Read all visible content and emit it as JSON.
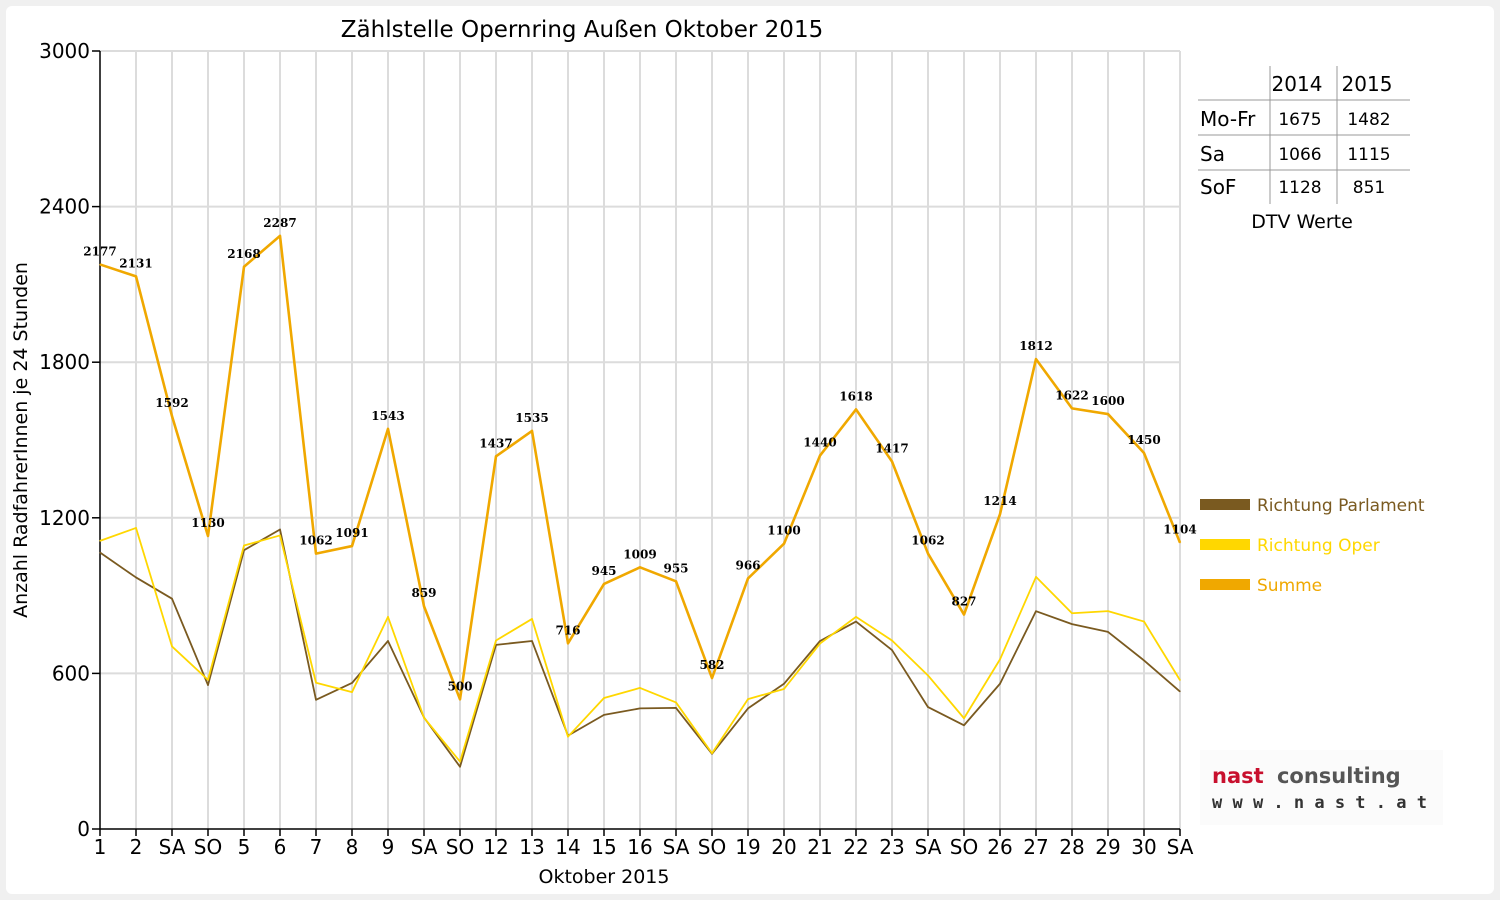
{
  "chart_data": {
    "type": "line",
    "title": "Zählstelle Opernring Außen Oktober 2015",
    "xlabel": "Oktober 2015",
    "ylabel": "Anzahl RadfahrerInnen je 24 Stunden",
    "ylim": [
      0,
      3000
    ],
    "yticks": [
      "0",
      "600",
      "1200",
      "1800",
      "2400",
      "3000"
    ],
    "grid": true,
    "categories": [
      "1",
      "2",
      "SA",
      "SO",
      "5",
      "6",
      "7",
      "8",
      "9",
      "SA",
      "SO",
      "12",
      "13",
      "14",
      "15",
      "16",
      "SA",
      "SO",
      "19",
      "20",
      "21",
      "22",
      "23",
      "SA",
      "SO",
      "26",
      "27",
      "28",
      "29",
      "30",
      "SA"
    ],
    "category_colors": [
      "#000000",
      "#000000",
      "#000000",
      "#e00000",
      "#000000",
      "#000000",
      "#000000",
      "#000000",
      "#000000",
      "#000000",
      "#e00000",
      "#000000",
      "#000000",
      "#000000",
      "#000000",
      "#000000",
      "#000000",
      "#e00000",
      "#000000",
      "#000000",
      "#000000",
      "#000000",
      "#000000",
      "#000000",
      "#e00000",
      "#e00000",
      "#000000",
      "#000000",
      "#000000",
      "#000000",
      "#000000"
    ],
    "legend_position": "right",
    "series": [
      {
        "name": "Richtung Parlament",
        "color": "#7a5a20",
        "values": [
          1066,
          970,
          888,
          555,
          1075,
          1155,
          498,
          563,
          725,
          430,
          240,
          710,
          725,
          360,
          440,
          465,
          467,
          290,
          465,
          560,
          725,
          800,
          690,
          470,
          400,
          560,
          840,
          790,
          760,
          650,
          530
        ]
      },
      {
        "name": "Richtung Oper",
        "color": "#ffd700",
        "values": [
          1111,
          1161,
          704,
          575,
          1093,
          1132,
          564,
          528,
          818,
          429,
          260,
          727,
          810,
          356,
          505,
          544,
          488,
          292,
          501,
          540,
          715,
          818,
          727,
          592,
          427,
          654,
          972,
          832,
          840,
          800,
          574
        ]
      },
      {
        "name": "Summe",
        "color": "#f0a800",
        "values": [
          2177,
          2131,
          1592,
          1130,
          2168,
          2287,
          1062,
          1091,
          1543,
          859,
          500,
          1437,
          1535,
          716,
          945,
          1009,
          955,
          582,
          966,
          1100,
          1440,
          1618,
          1417,
          1062,
          827,
          1214,
          1812,
          1622,
          1600,
          1450,
          1104
        ]
      }
    ],
    "data_labels": [
      "2177",
      "2131",
      "1592",
      "1130",
      "2168",
      "2287",
      "1062",
      "1091",
      "1543",
      "859",
      "500",
      "1437",
      "1535",
      "716",
      "945",
      "1009",
      "955",
      "582",
      "966",
      "1100",
      "1440",
      "1618",
      "1417",
      "1062",
      "827",
      "1214",
      "1812",
      "1622",
      "1600",
      "1450",
      "1104"
    ]
  },
  "dtv_table": {
    "columns": [
      "2014",
      "2015"
    ],
    "rows": [
      {
        "label": "Mo-Fr",
        "v2014": "1675",
        "v2015": "1482"
      },
      {
        "label": "Sa",
        "v2014": "1066",
        "v2015": "1115"
      },
      {
        "label": "SoF",
        "v2014": "1128",
        "v2015": "851"
      }
    ],
    "caption": "DTV Werte"
  },
  "logo": {
    "top_left": "nast",
    "top_right": "consulting",
    "bottom": "w w w . n a s t . a t",
    "color_red": "#c8102e",
    "color_dark": "#555555"
  }
}
